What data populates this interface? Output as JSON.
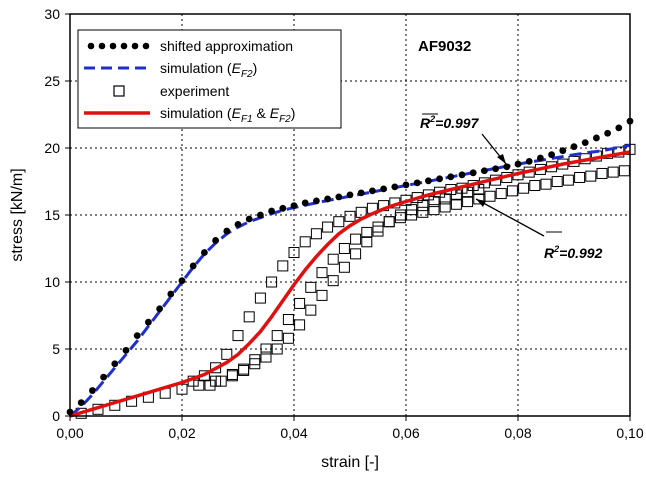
{
  "chart_data": {
    "type": "scatter",
    "title": "AF9032",
    "xlabel": "strain [-]",
    "ylabel": "stress [kN/m]",
    "xlim": [
      0,
      0.1
    ],
    "ylim": [
      0,
      30
    ],
    "x_ticks": [
      "0,00",
      "0,02",
      "0,04",
      "0,06",
      "0,08",
      "0,10"
    ],
    "y_ticks": [
      "0",
      "5",
      "10",
      "15",
      "20",
      "25",
      "30"
    ],
    "grid": true,
    "legend_position": "top-left",
    "legend": {
      "shifted": "shifted approximation",
      "simEF2_prefix": "simulation (",
      "simEF2_E": "E",
      "simEF2_sub": "F2",
      "simEF2_suffix": ")",
      "experiment": "experiment",
      "simBoth_prefix": "simulation (",
      "simBoth_E1": "E",
      "simBoth_sub1": "F1",
      "simBoth_amp": " & ",
      "simBoth_E2": "E",
      "simBoth_sub2": "F2",
      "simBoth_suffix": ")"
    },
    "annotations": [
      {
        "R": "R",
        "sup": "2",
        "value": "=0.997"
      },
      {
        "R": "R",
        "sup": "2",
        "value": "=0.992"
      }
    ],
    "series": [
      {
        "name": "shifted approximation",
        "style": "dots",
        "color": "#000000",
        "x": [
          0.0,
          0.002,
          0.004,
          0.006,
          0.008,
          0.01,
          0.012,
          0.014,
          0.016,
          0.018,
          0.02,
          0.022,
          0.024,
          0.026,
          0.028,
          0.03,
          0.032,
          0.034,
          0.036,
          0.038,
          0.04,
          0.042,
          0.044,
          0.046,
          0.048,
          0.05,
          0.052,
          0.054,
          0.056,
          0.058,
          0.06,
          0.062,
          0.064,
          0.066,
          0.068,
          0.07,
          0.072,
          0.074,
          0.076,
          0.078,
          0.08,
          0.082,
          0.084,
          0.086,
          0.088,
          0.09,
          0.092,
          0.094,
          0.096,
          0.098,
          0.1
        ],
        "y": [
          0.3,
          1.0,
          1.9,
          2.9,
          3.9,
          4.9,
          6.0,
          7.0,
          8.0,
          9.1,
          10.1,
          11.2,
          12.2,
          13.1,
          13.8,
          14.3,
          14.7,
          15.0,
          15.3,
          15.5,
          15.7,
          15.9,
          16.05,
          16.2,
          16.35,
          16.5,
          16.65,
          16.8,
          16.95,
          17.1,
          17.25,
          17.4,
          17.55,
          17.7,
          17.85,
          18.0,
          18.15,
          18.3,
          18.45,
          18.6,
          18.8,
          19.0,
          19.25,
          19.5,
          19.8,
          20.1,
          20.4,
          20.75,
          21.1,
          21.5,
          22.0
        ]
      },
      {
        "name": "simulation (EF2)",
        "style": "dashed",
        "color": "#1f2fcc",
        "x": [
          0.0,
          0.002,
          0.004,
          0.006,
          0.008,
          0.01,
          0.012,
          0.014,
          0.016,
          0.018,
          0.02,
          0.022,
          0.024,
          0.026,
          0.028,
          0.03,
          0.032,
          0.034,
          0.036,
          0.038,
          0.04,
          0.045,
          0.05,
          0.055,
          0.06,
          0.065,
          0.07,
          0.075,
          0.08,
          0.085,
          0.09,
          0.095,
          0.1
        ],
        "y": [
          0.0,
          0.7,
          1.6,
          2.6,
          3.6,
          4.6,
          5.6,
          6.7,
          7.8,
          8.9,
          10.0,
          11.1,
          12.1,
          12.9,
          13.6,
          14.1,
          14.5,
          14.8,
          15.1,
          15.35,
          15.55,
          16.0,
          16.4,
          16.8,
          17.2,
          17.6,
          18.0,
          18.4,
          18.8,
          19.15,
          19.5,
          19.8,
          20.2
        ]
      },
      {
        "name": "experiment",
        "style": "squares",
        "color": "#000000",
        "x": [
          0.002,
          0.005,
          0.008,
          0.011,
          0.014,
          0.017,
          0.02,
          0.023,
          0.026,
          0.029,
          0.031,
          0.033,
          0.035,
          0.037,
          0.039,
          0.041,
          0.043,
          0.045,
          0.047,
          0.049,
          0.051,
          0.053,
          0.055,
          0.057,
          0.059,
          0.061,
          0.063,
          0.065,
          0.067,
          0.069,
          0.071,
          0.073,
          0.075,
          0.077,
          0.079,
          0.081,
          0.083,
          0.085,
          0.087,
          0.089,
          0.091,
          0.093,
          0.095,
          0.097,
          0.099,
          0.022,
          0.024,
          0.026,
          0.028,
          0.03,
          0.032,
          0.034,
          0.036,
          0.038,
          0.04,
          0.042,
          0.044,
          0.046,
          0.048,
          0.05,
          0.052,
          0.054,
          0.056,
          0.058,
          0.06,
          0.062,
          0.064,
          0.066,
          0.068,
          0.07,
          0.072,
          0.074,
          0.076,
          0.078,
          0.08,
          0.082,
          0.084,
          0.086,
          0.088,
          0.09,
          0.092,
          0.094,
          0.096,
          0.098,
          0.1,
          0.025,
          0.027,
          0.029,
          0.031,
          0.033,
          0.035,
          0.037,
          0.039,
          0.041,
          0.043,
          0.045,
          0.047,
          0.049,
          0.051,
          0.053,
          0.055,
          0.057,
          0.059,
          0.061,
          0.063,
          0.065,
          0.067,
          0.069,
          0.071,
          0.073
        ],
        "y": [
          0.2,
          0.5,
          0.8,
          1.1,
          1.4,
          1.7,
          2.0,
          2.3,
          2.6,
          3.1,
          3.5,
          4.2,
          5.0,
          6.0,
          7.2,
          8.4,
          9.6,
          10.7,
          11.7,
          12.5,
          13.2,
          13.7,
          14.1,
          14.5,
          14.8,
          15.0,
          15.2,
          15.4,
          15.6,
          15.8,
          16.0,
          16.2,
          16.4,
          16.6,
          16.8,
          17.0,
          17.2,
          17.3,
          17.5,
          17.6,
          17.8,
          17.9,
          18.1,
          18.2,
          18.3,
          2.6,
          3.0,
          3.6,
          4.6,
          6.0,
          7.4,
          8.8,
          10.0,
          11.2,
          12.2,
          13.0,
          13.6,
          14.1,
          14.5,
          14.9,
          15.2,
          15.5,
          15.7,
          15.9,
          16.1,
          16.3,
          16.5,
          16.7,
          16.9,
          17.0,
          17.2,
          17.4,
          17.6,
          17.8,
          18.0,
          18.2,
          18.4,
          18.6,
          18.8,
          19.0,
          19.2,
          19.4,
          19.6,
          19.7,
          19.9,
          2.3,
          2.6,
          3.0,
          3.4,
          3.9,
          4.4,
          5.0,
          5.8,
          6.8,
          7.9,
          9.0,
          10.1,
          11.1,
          12.1,
          13.0,
          13.8,
          14.5,
          15.0,
          15.4,
          15.7,
          16.0,
          16.2,
          16.5,
          16.7,
          16.9
        ]
      },
      {
        "name": "simulation (EF1 & EF2)",
        "style": "solid",
        "color": "#e01010",
        "x": [
          0.0,
          0.004,
          0.008,
          0.012,
          0.016,
          0.02,
          0.024,
          0.028,
          0.03,
          0.032,
          0.034,
          0.036,
          0.038,
          0.04,
          0.042,
          0.044,
          0.046,
          0.048,
          0.05,
          0.052,
          0.054,
          0.056,
          0.058,
          0.06,
          0.064,
          0.068,
          0.072,
          0.076,
          0.08,
          0.084,
          0.088,
          0.092,
          0.096,
          0.1
        ],
        "y": [
          0.0,
          0.5,
          1.0,
          1.5,
          2.0,
          2.5,
          3.1,
          4.0,
          4.6,
          5.4,
          6.3,
          7.4,
          8.6,
          9.8,
          10.9,
          11.9,
          12.8,
          13.6,
          14.2,
          14.7,
          15.1,
          15.45,
          15.75,
          16.0,
          16.5,
          16.9,
          17.3,
          17.7,
          18.1,
          18.45,
          18.8,
          19.1,
          19.4,
          19.7
        ]
      }
    ]
  }
}
